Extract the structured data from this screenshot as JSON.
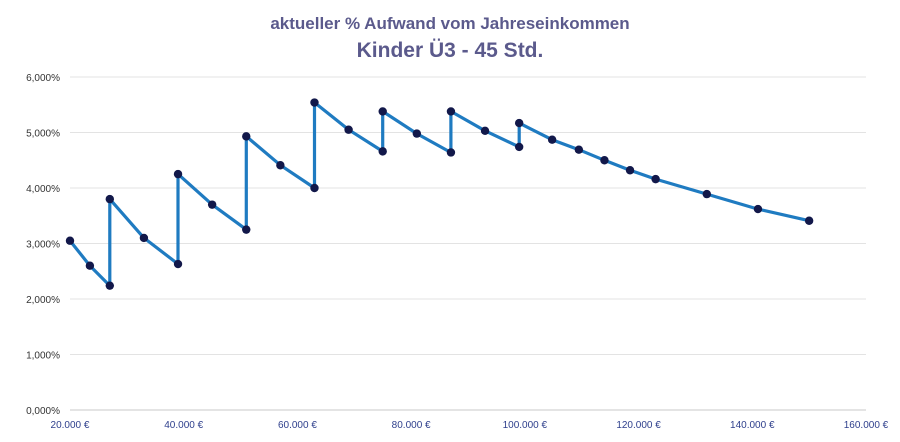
{
  "chart_data": {
    "type": "line",
    "title": "aktueller % Aufwand vom Jahreseinkommen",
    "subtitle": "Kinder Ü3 - 45 Std.",
    "xlabel": "",
    "ylabel": "",
    "xlim": [
      20000,
      160000
    ],
    "ylim": [
      0,
      6
    ],
    "x_ticks": [
      20000,
      40000,
      60000,
      80000,
      100000,
      120000,
      140000,
      160000
    ],
    "x_tick_labels": [
      "20.000 €",
      "40.000 €",
      "60.000 €",
      "80.000 €",
      "100.000 €",
      "120.000 €",
      "140.000 €",
      "160.000 €"
    ],
    "y_ticks": [
      0,
      1,
      2,
      3,
      4,
      5,
      6
    ],
    "y_tick_labels": [
      "0,000%",
      "1,000%",
      "2,000%",
      "3,000%",
      "4,000%",
      "5,000%",
      "6,000%"
    ],
    "grid": "horizontal",
    "legend": "none",
    "colors": {
      "line": "#1f7bc1",
      "marker": "#12184a",
      "grid": "#e3e3e3",
      "axis": "#c8c8c8",
      "title": "#5b5a8c",
      "tick_x": "#2e3f8c",
      "tick_y": "#333333"
    },
    "series": [
      {
        "points": [
          [
            20000,
            3.05
          ],
          [
            23500,
            2.6
          ],
          [
            27000,
            2.24
          ],
          [
            27000,
            3.8
          ],
          [
            33000,
            3.1
          ],
          [
            39000,
            2.63
          ],
          [
            39000,
            4.25
          ],
          [
            45000,
            3.7
          ],
          [
            51000,
            3.25
          ],
          [
            51000,
            4.93
          ],
          [
            57000,
            4.41
          ],
          [
            63000,
            4.0
          ],
          [
            63000,
            5.54
          ],
          [
            69000,
            5.05
          ],
          [
            75000,
            4.66
          ],
          [
            75000,
            5.38
          ],
          [
            81000,
            4.98
          ],
          [
            87000,
            4.64
          ],
          [
            87000,
            5.38
          ],
          [
            93000,
            5.03
          ],
          [
            99000,
            4.74
          ],
          [
            99000,
            5.17
          ],
          [
            104800,
            4.87
          ],
          [
            109500,
            4.69
          ],
          [
            114000,
            4.5
          ],
          [
            118500,
            4.32
          ],
          [
            123000,
            4.16
          ],
          [
            132000,
            3.89
          ],
          [
            141000,
            3.62
          ],
          [
            150000,
            3.41
          ]
        ]
      }
    ]
  }
}
